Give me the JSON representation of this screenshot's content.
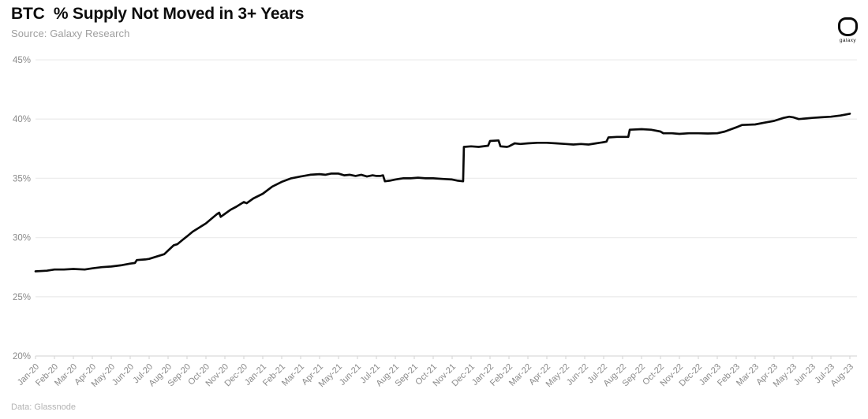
{
  "header": {
    "title": "BTC  % Supply Not Moved in 3+ Years",
    "source": "Source: Galaxy Research"
  },
  "logo": {
    "label": "galaxy"
  },
  "footer": {
    "note": "Data: Glassnode"
  },
  "colors": {
    "title": "#0d0d0d",
    "subtitle": "#9e9e9e",
    "line": "#0a0a0a",
    "grid": "#ededed",
    "axis": "#d9d9d9",
    "tick_label": "#8a8a8a",
    "footnote": "#b3b3b3",
    "background": "#ffffff"
  },
  "chart_data": {
    "type": "line",
    "title": "BTC  % Supply Not Moved in 3+ Years",
    "subtitle": "Source: Galaxy Research",
    "attribution": "Data: Glassnode",
    "xlabel": "",
    "ylabel": "",
    "ylim": [
      20,
      45
    ],
    "y_ticks": [
      20,
      25,
      30,
      35,
      40,
      45
    ],
    "y_tick_suffix": "%",
    "grid": "horizontal",
    "legend": "none",
    "x_ticks": [
      "Jan-20",
      "Feb-20",
      "Mar-20",
      "Apr-20",
      "May-20",
      "Jun-20",
      "Jul-20",
      "Aug-20",
      "Sep-20",
      "Oct-20",
      "Nov-20",
      "Dec-20",
      "Jan-21",
      "Feb-21",
      "Mar-21",
      "Apr-21",
      "May-21",
      "Jun-21",
      "Jul-21",
      "Aug-21",
      "Sep-21",
      "Oct-21",
      "Nov-21",
      "Dec-21",
      "Jan-22",
      "Feb-22",
      "Mar-22",
      "Apr-22",
      "May-22",
      "Jun-22",
      "Jul-22",
      "Aug-22",
      "Sep-22",
      "Oct-22",
      "Nov-22",
      "Dec-22",
      "Jan-23",
      "Feb-23",
      "Mar-23",
      "Apr-23",
      "May-23",
      "Jun-23",
      "Jul-23",
      "Aug-23"
    ],
    "series": [
      {
        "name": "BTC % supply not moved in 3+ years",
        "x_unit": "month-index from Jan-20",
        "y_unit": "percent",
        "points": [
          [
            0,
            27.15
          ],
          [
            0.6,
            27.2
          ],
          [
            1,
            27.3
          ],
          [
            1.5,
            27.3
          ],
          [
            2,
            27.35
          ],
          [
            2.6,
            27.3
          ],
          [
            3,
            27.4
          ],
          [
            3.5,
            27.5
          ],
          [
            4,
            27.55
          ],
          [
            4.5,
            27.65
          ],
          [
            5,
            27.8
          ],
          [
            5.25,
            27.85
          ],
          [
            5.35,
            28.1
          ],
          [
            5.8,
            28.15
          ],
          [
            6,
            28.2
          ],
          [
            6.4,
            28.4
          ],
          [
            6.8,
            28.6
          ],
          [
            7,
            28.9
          ],
          [
            7.3,
            29.35
          ],
          [
            7.5,
            29.45
          ],
          [
            7.8,
            29.85
          ],
          [
            8,
            30.1
          ],
          [
            8.3,
            30.5
          ],
          [
            8.7,
            30.9
          ],
          [
            9,
            31.2
          ],
          [
            9.3,
            31.6
          ],
          [
            9.6,
            32.0
          ],
          [
            9.7,
            32.1
          ],
          [
            9.78,
            31.75
          ],
          [
            10,
            32.0
          ],
          [
            10.3,
            32.35
          ],
          [
            10.6,
            32.6
          ],
          [
            11,
            33.0
          ],
          [
            11.15,
            32.9
          ],
          [
            11.5,
            33.3
          ],
          [
            12,
            33.7
          ],
          [
            12.5,
            34.3
          ],
          [
            13,
            34.7
          ],
          [
            13.5,
            35.0
          ],
          [
            14,
            35.15
          ],
          [
            14.5,
            35.3
          ],
          [
            15,
            35.35
          ],
          [
            15.3,
            35.3
          ],
          [
            15.6,
            35.4
          ],
          [
            16,
            35.4
          ],
          [
            16.3,
            35.25
          ],
          [
            16.6,
            35.3
          ],
          [
            16.9,
            35.2
          ],
          [
            17.2,
            35.3
          ],
          [
            17.5,
            35.15
          ],
          [
            17.8,
            35.25
          ],
          [
            18,
            35.2
          ],
          [
            18.2,
            35.2
          ],
          [
            18.35,
            35.25
          ],
          [
            18.45,
            34.75
          ],
          [
            18.7,
            34.8
          ],
          [
            19,
            34.9
          ],
          [
            19.4,
            35.0
          ],
          [
            19.8,
            35.0
          ],
          [
            20.2,
            35.05
          ],
          [
            20.6,
            35.0
          ],
          [
            21,
            35.0
          ],
          [
            21.5,
            34.95
          ],
          [
            22,
            34.9
          ],
          [
            22.3,
            34.8
          ],
          [
            22.58,
            34.75
          ],
          [
            22.62,
            37.65
          ],
          [
            23,
            37.7
          ],
          [
            23.4,
            37.65
          ],
          [
            23.9,
            37.75
          ],
          [
            24,
            38.15
          ],
          [
            24.45,
            38.2
          ],
          [
            24.55,
            37.7
          ],
          [
            24.9,
            37.65
          ],
          [
            25,
            37.7
          ],
          [
            25.3,
            37.95
          ],
          [
            25.6,
            37.9
          ],
          [
            26,
            37.95
          ],
          [
            26.5,
            38.0
          ],
          [
            27,
            38.0
          ],
          [
            27.5,
            37.95
          ],
          [
            28,
            37.9
          ],
          [
            28.4,
            37.85
          ],
          [
            28.8,
            37.9
          ],
          [
            29.2,
            37.85
          ],
          [
            29.6,
            37.95
          ],
          [
            30,
            38.05
          ],
          [
            30.15,
            38.1
          ],
          [
            30.25,
            38.45
          ],
          [
            30.7,
            38.5
          ],
          [
            31,
            38.5
          ],
          [
            31.3,
            38.5
          ],
          [
            31.38,
            39.1
          ],
          [
            32,
            39.15
          ],
          [
            32.5,
            39.1
          ],
          [
            33,
            38.95
          ],
          [
            33.15,
            38.8
          ],
          [
            33.6,
            38.8
          ],
          [
            34,
            38.75
          ],
          [
            34.5,
            38.8
          ],
          [
            35,
            38.8
          ],
          [
            35.5,
            38.78
          ],
          [
            36,
            38.8
          ],
          [
            36.4,
            38.95
          ],
          [
            37,
            39.3
          ],
          [
            37.3,
            39.5
          ],
          [
            38,
            39.55
          ],
          [
            38.5,
            39.7
          ],
          [
            39,
            39.85
          ],
          [
            39.5,
            40.1
          ],
          [
            39.8,
            40.2
          ],
          [
            40,
            40.15
          ],
          [
            40.3,
            40.0
          ],
          [
            40.7,
            40.05
          ],
          [
            41,
            40.1
          ],
          [
            41.5,
            40.15
          ],
          [
            42,
            40.2
          ],
          [
            42.5,
            40.3
          ],
          [
            43,
            40.45
          ]
        ]
      }
    ]
  }
}
